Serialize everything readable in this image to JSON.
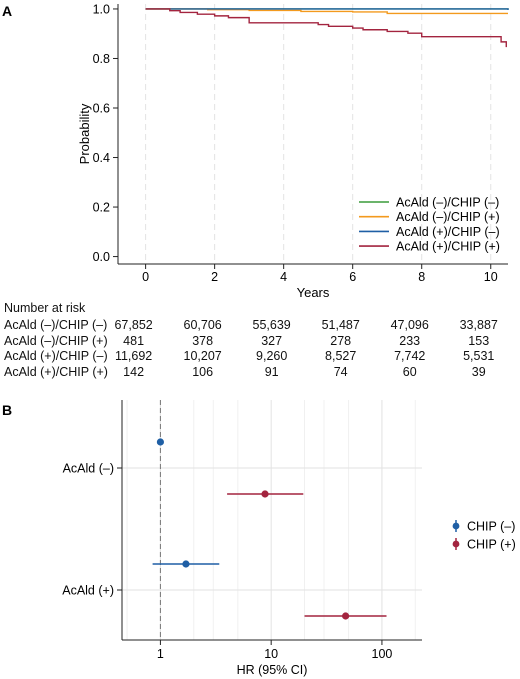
{
  "panels": {
    "a": {
      "tag": "A"
    },
    "b": {
      "tag": "B"
    }
  },
  "chart_data": [
    {
      "type": "line",
      "subtype": "kaplan-meier",
      "xlabel": "Years",
      "ylabel": "Probability",
      "xlim": [
        -0.8,
        10.5
      ],
      "ylim": [
        -0.03,
        1.02
      ],
      "xticks": [
        0,
        2,
        4,
        6,
        8,
        10
      ],
      "yticks": [
        0.0,
        0.2,
        0.4,
        0.6,
        0.8,
        1.0
      ],
      "ytick_labels": [
        "0.0",
        "0.2",
        "0.4",
        "0.6",
        "0.8",
        "1.0"
      ],
      "grid": "vertical dashed",
      "legend_position": "bottom-right",
      "series": [
        {
          "name": "AcAld (–)/CHIP (–)",
          "color": "#3a9c3a",
          "x": [
            0,
            10.5
          ],
          "y": [
            1.0,
            0.998
          ]
        },
        {
          "name": "AcAld (–)/CHIP (+)",
          "color": "#f39a1e",
          "x": [
            0,
            1.8,
            3.0,
            4.5,
            6.0,
            7.0,
            10.5
          ],
          "y": [
            1.0,
            0.997,
            0.994,
            0.99,
            0.988,
            0.982,
            0.982
          ]
        },
        {
          "name": "AcAld (+)/CHIP (–)",
          "color": "#1f5fa5",
          "x": [
            0,
            10.5
          ],
          "y": [
            1.0,
            0.996
          ]
        },
        {
          "name": "AcAld (+)/CHIP (+)",
          "color": "#a3243f",
          "x": [
            0,
            0.7,
            1.0,
            1.5,
            2.0,
            2.4,
            3.0,
            5.0,
            5.3,
            6.0,
            6.3,
            7.0,
            7.6,
            8.0,
            10.3,
            10.45
          ],
          "y": [
            1.0,
            0.993,
            0.986,
            0.979,
            0.972,
            0.965,
            0.944,
            0.937,
            0.93,
            0.923,
            0.916,
            0.909,
            0.902,
            0.888,
            0.867,
            0.846
          ]
        }
      ],
      "risk_table": {
        "title": "Number at risk",
        "times": [
          0,
          2,
          4,
          6,
          8,
          10
        ],
        "rows": [
          {
            "label": "AcAld (–)/CHIP (–)",
            "values": [
              "67,852",
              "60,706",
              "55,639",
              "51,487",
              "47,096",
              "33,887"
            ]
          },
          {
            "label": "AcAld (–)/CHIP (+)",
            "values": [
              "481",
              "378",
              "327",
              "278",
              "233",
              "153"
            ]
          },
          {
            "label": "AcAld (+)/CHIP (–)",
            "values": [
              "11,692",
              "10,207",
              "9,260",
              "8,527",
              "7,742",
              "5,531"
            ]
          },
          {
            "label": "AcAld (+)/CHIP (+)",
            "values": [
              "142",
              "106",
              "91",
              "74",
              "60",
              "39"
            ]
          }
        ]
      }
    },
    {
      "type": "scatter",
      "subtype": "forest",
      "xlabel": "HR (95% CI)",
      "x_scale": "log",
      "xlim": [
        0.45,
        230
      ],
      "xticks": [
        1,
        10,
        100
      ],
      "xtick_labels": [
        "1",
        "10",
        "100"
      ],
      "reference_line": 1,
      "categories": [
        "AcAld (–)",
        "AcAld (+)"
      ],
      "grid": "light horizontal and vertical",
      "legend_position": "right",
      "series": [
        {
          "name": "CHIP (–)",
          "color": "#1f5fa5",
          "points": [
            {
              "category": "AcAld (–)",
              "hr": 1.0,
              "lo": 1.0,
              "hi": 1.0
            },
            {
              "category": "AcAld (+)",
              "hr": 1.7,
              "lo": 0.85,
              "hi": 3.4
            }
          ]
        },
        {
          "name": "CHIP (+)",
          "color": "#a3243f",
          "points": [
            {
              "category": "AcAld (–)",
              "hr": 8.8,
              "lo": 4.0,
              "hi": 19.5
            },
            {
              "category": "AcAld (+)",
              "hr": 47,
              "lo": 20,
              "hi": 110
            }
          ]
        }
      ]
    }
  ]
}
